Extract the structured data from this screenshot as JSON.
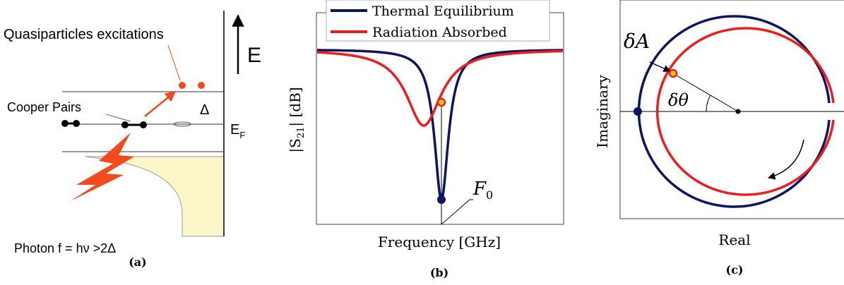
{
  "panel_a": {
    "quasiparticles": "Quasiparticles excitations",
    "energy": "E",
    "cooper_pairs": "Cooper Pairs",
    "gap": "Δ",
    "fermi": {
      "main": "E",
      "sub": "F"
    },
    "photon": "Photon f = hν >2Δ",
    "caption": "(a)"
  },
  "panel_b": {
    "legend": [
      "Thermal Equilibrium",
      "Radiation Absorbed"
    ],
    "y_label": {
      "pre": "|S",
      "sub": "21",
      "post": "| [dB]"
    },
    "x_label": "Frequency [GHz]",
    "resonance": {
      "main": "F",
      "sub": "0"
    },
    "caption": "(b)"
  },
  "panel_c": {
    "amplitude": "δA",
    "phase": "δθ",
    "y_label": "Imaginary",
    "x_label": "Real",
    "caption": "(c)"
  }
}
